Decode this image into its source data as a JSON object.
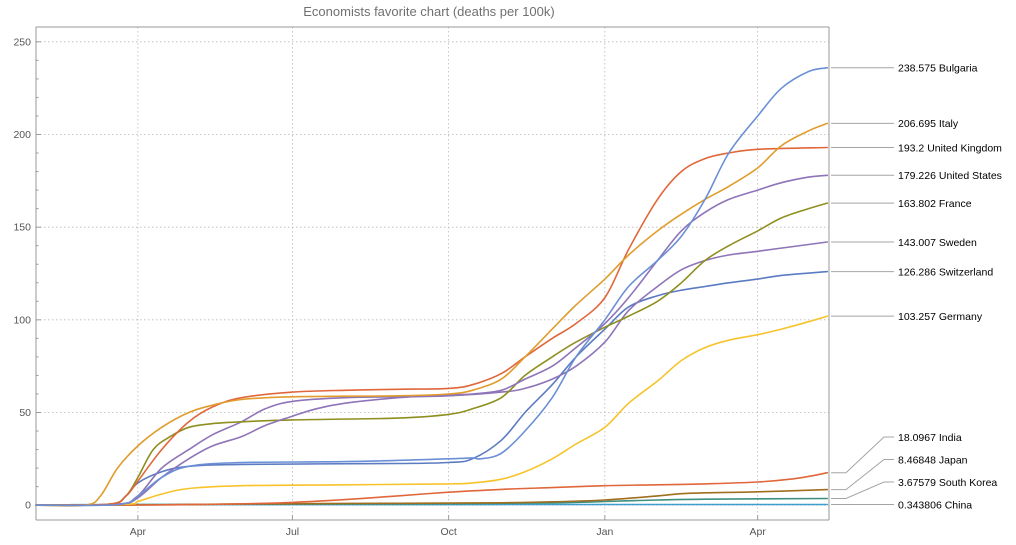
{
  "chart_data": {
    "type": "line",
    "title": "Economists favorite chart (deaths per 100k)",
    "xlabel": "",
    "ylabel": "",
    "x_domain": [
      "2020-02-01",
      "2021-05-13"
    ],
    "ylim": [
      -8,
      258
    ],
    "x_ticks": [
      {
        "date": "2020-04-01",
        "label": "Apr"
      },
      {
        "date": "2020-07-01",
        "label": "Jul"
      },
      {
        "date": "2020-10-01",
        "label": "Oct"
      },
      {
        "date": "2021-01-01",
        "label": "Jan"
      },
      {
        "date": "2021-04-01",
        "label": "Apr"
      }
    ],
    "y_ticks": [
      0,
      50,
      100,
      150,
      200,
      250
    ],
    "grid": true,
    "series": [
      {
        "name": "Bulgaria",
        "final_value": "238.575",
        "color": "#6b8fd6",
        "points": [
          [
            "2020-02-01",
            0
          ],
          [
            "2020-03-20",
            0.3
          ],
          [
            "2020-04-01",
            5
          ],
          [
            "2020-04-15",
            15
          ],
          [
            "2020-05-01",
            21
          ],
          [
            "2020-06-01",
            23
          ],
          [
            "2020-08-01",
            23.5
          ],
          [
            "2020-10-01",
            25
          ],
          [
            "2020-10-15",
            25.5
          ],
          [
            "2020-10-20",
            25
          ],
          [
            "2020-11-01",
            28
          ],
          [
            "2020-11-15",
            40
          ],
          [
            "2020-12-01",
            58
          ],
          [
            "2020-12-15",
            80
          ],
          [
            "2021-01-01",
            100
          ],
          [
            "2021-01-15",
            118
          ],
          [
            "2021-02-01",
            132
          ],
          [
            "2021-02-15",
            145
          ],
          [
            "2021-03-01",
            165
          ],
          [
            "2021-03-15",
            190
          ],
          [
            "2021-04-01",
            210
          ],
          [
            "2021-04-15",
            225
          ],
          [
            "2021-05-01",
            234
          ],
          [
            "2021-05-12",
            236
          ]
        ]
      },
      {
        "name": "Italy",
        "final_value": "206.695",
        "color": "#e09c2c",
        "points": [
          [
            "2020-02-01",
            0
          ],
          [
            "2020-03-01",
            0
          ],
          [
            "2020-03-10",
            5
          ],
          [
            "2020-03-20",
            20
          ],
          [
            "2020-04-01",
            32
          ],
          [
            "2020-04-15",
            42
          ],
          [
            "2020-05-01",
            50
          ],
          [
            "2020-05-15",
            54
          ],
          [
            "2020-06-01",
            57
          ],
          [
            "2020-07-01",
            58.5
          ],
          [
            "2020-09-01",
            59
          ],
          [
            "2020-10-01",
            60
          ],
          [
            "2020-10-15",
            62
          ],
          [
            "2020-11-01",
            68
          ],
          [
            "2020-11-15",
            80
          ],
          [
            "2020-12-01",
            95
          ],
          [
            "2020-12-15",
            108
          ],
          [
            "2021-01-01",
            122
          ],
          [
            "2021-01-15",
            135
          ],
          [
            "2021-02-01",
            148
          ],
          [
            "2021-02-15",
            157
          ],
          [
            "2021-03-01",
            165
          ],
          [
            "2021-03-15",
            172
          ],
          [
            "2021-04-01",
            182
          ],
          [
            "2021-04-15",
            194
          ],
          [
            "2021-05-01",
            202
          ],
          [
            "2021-05-12",
            206
          ]
        ]
      },
      {
        "name": "United Kingdom",
        "final_value": "193.2",
        "color": "#e0673a",
        "points": [
          [
            "2020-02-01",
            0
          ],
          [
            "2020-03-15",
            0.5
          ],
          [
            "2020-03-25",
            5
          ],
          [
            "2020-04-01",
            13
          ],
          [
            "2020-04-15",
            30
          ],
          [
            "2020-05-01",
            45
          ],
          [
            "2020-05-15",
            53
          ],
          [
            "2020-06-01",
            58
          ],
          [
            "2020-07-01",
            61
          ],
          [
            "2020-08-01",
            62
          ],
          [
            "2020-09-01",
            62.5
          ],
          [
            "2020-10-01",
            63
          ],
          [
            "2020-10-15",
            65
          ],
          [
            "2020-11-01",
            71
          ],
          [
            "2020-11-15",
            80
          ],
          [
            "2020-12-01",
            90
          ],
          [
            "2020-12-15",
            98
          ],
          [
            "2021-01-01",
            112
          ],
          [
            "2021-01-15",
            138
          ],
          [
            "2021-02-01",
            165
          ],
          [
            "2021-02-15",
            180
          ],
          [
            "2021-03-01",
            187
          ],
          [
            "2021-03-15",
            190
          ],
          [
            "2021-04-01",
            192
          ],
          [
            "2021-05-12",
            193
          ]
        ]
      },
      {
        "name": "United States",
        "final_value": "179.226",
        "color": "#8e74b8",
        "points": [
          [
            "2020-02-01",
            0
          ],
          [
            "2020-03-20",
            0.5
          ],
          [
            "2020-04-01",
            4
          ],
          [
            "2020-04-15",
            15
          ],
          [
            "2020-05-01",
            25
          ],
          [
            "2020-05-15",
            32
          ],
          [
            "2020-06-01",
            37
          ],
          [
            "2020-06-15",
            43
          ],
          [
            "2020-07-01",
            48
          ],
          [
            "2020-07-15",
            52
          ],
          [
            "2020-08-01",
            55
          ],
          [
            "2020-09-01",
            58
          ],
          [
            "2020-10-01",
            59.5
          ],
          [
            "2020-10-15",
            60
          ],
          [
            "2020-11-01",
            62
          ],
          [
            "2020-11-15",
            68
          ],
          [
            "2020-12-01",
            75
          ],
          [
            "2020-12-15",
            85
          ],
          [
            "2021-01-01",
            98
          ],
          [
            "2021-01-15",
            112
          ],
          [
            "2021-02-01",
            132
          ],
          [
            "2021-02-15",
            148
          ],
          [
            "2021-03-01",
            158
          ],
          [
            "2021-03-15",
            165
          ],
          [
            "2021-04-01",
            170
          ],
          [
            "2021-04-15",
            174
          ],
          [
            "2021-05-01",
            177
          ],
          [
            "2021-05-12",
            178
          ]
        ]
      },
      {
        "name": "France",
        "final_value": "163.802",
        "color": "#8f8f1f",
        "points": [
          [
            "2020-02-01",
            0
          ],
          [
            "2020-03-15",
            0.5
          ],
          [
            "2020-03-25",
            5
          ],
          [
            "2020-04-01",
            15
          ],
          [
            "2020-04-10",
            30
          ],
          [
            "2020-04-20",
            37
          ],
          [
            "2020-05-01",
            42
          ],
          [
            "2020-05-15",
            44
          ],
          [
            "2020-06-01",
            45
          ],
          [
            "2020-07-01",
            46
          ],
          [
            "2020-09-01",
            47
          ],
          [
            "2020-10-01",
            49
          ],
          [
            "2020-10-15",
            52
          ],
          [
            "2020-11-01",
            58
          ],
          [
            "2020-11-15",
            70
          ],
          [
            "2020-12-01",
            80
          ],
          [
            "2020-12-15",
            88
          ],
          [
            "2021-01-01",
            96
          ],
          [
            "2021-01-15",
            102
          ],
          [
            "2021-02-01",
            110
          ],
          [
            "2021-02-15",
            120
          ],
          [
            "2021-03-01",
            132
          ],
          [
            "2021-03-15",
            140
          ],
          [
            "2021-04-01",
            148
          ],
          [
            "2021-04-15",
            155
          ],
          [
            "2021-05-01",
            160
          ],
          [
            "2021-05-12",
            163
          ]
        ]
      },
      {
        "name": "Sweden",
        "final_value": "143.007",
        "color": "#8e74b8",
        "points": [
          [
            "2020-02-01",
            0
          ],
          [
            "2020-03-20",
            0.5
          ],
          [
            "2020-04-01",
            5
          ],
          [
            "2020-04-15",
            20
          ],
          [
            "2020-05-01",
            30
          ],
          [
            "2020-05-15",
            38
          ],
          [
            "2020-06-01",
            45
          ],
          [
            "2020-06-15",
            52
          ],
          [
            "2020-07-01",
            56
          ],
          [
            "2020-08-01",
            58
          ],
          [
            "2020-09-01",
            58.5
          ],
          [
            "2020-10-01",
            59
          ],
          [
            "2020-11-01",
            61
          ],
          [
            "2020-11-15",
            63
          ],
          [
            "2020-12-01",
            68
          ],
          [
            "2020-12-15",
            75
          ],
          [
            "2021-01-01",
            88
          ],
          [
            "2021-01-15",
            105
          ],
          [
            "2021-02-01",
            118
          ],
          [
            "2021-02-15",
            127
          ],
          [
            "2021-03-01",
            132
          ],
          [
            "2021-03-15",
            135
          ],
          [
            "2021-04-01",
            137
          ],
          [
            "2021-05-12",
            142
          ]
        ]
      },
      {
        "name": "Switzerland",
        "final_value": "126.286",
        "color": "#5b7bc2",
        "points": [
          [
            "2020-02-01",
            0
          ],
          [
            "2020-03-15",
            0.5
          ],
          [
            "2020-03-25",
            5
          ],
          [
            "2020-04-01",
            12
          ],
          [
            "2020-04-15",
            18
          ],
          [
            "2020-05-01",
            21
          ],
          [
            "2020-06-01",
            22
          ],
          [
            "2020-09-01",
            22.5
          ],
          [
            "2020-10-01",
            23
          ],
          [
            "2020-10-15",
            25
          ],
          [
            "2020-11-01",
            35
          ],
          [
            "2020-11-15",
            50
          ],
          [
            "2020-12-01",
            65
          ],
          [
            "2020-12-15",
            80
          ],
          [
            "2021-01-01",
            95
          ],
          [
            "2021-01-15",
            107
          ],
          [
            "2021-02-01",
            113
          ],
          [
            "2021-02-15",
            116
          ],
          [
            "2021-03-01",
            118
          ],
          [
            "2021-03-15",
            120
          ],
          [
            "2021-04-01",
            122
          ],
          [
            "2021-04-15",
            124
          ],
          [
            "2021-05-12",
            126
          ]
        ]
      },
      {
        "name": "Germany",
        "final_value": "103.257",
        "color": "#f7c32b",
        "points": [
          [
            "2020-02-01",
            0
          ],
          [
            "2020-03-25",
            0.5
          ],
          [
            "2020-04-01",
            2
          ],
          [
            "2020-04-15",
            6
          ],
          [
            "2020-05-01",
            9
          ],
          [
            "2020-06-01",
            10.5
          ],
          [
            "2020-08-01",
            11
          ],
          [
            "2020-10-01",
            11.5
          ],
          [
            "2020-10-15",
            12
          ],
          [
            "2020-11-01",
            14
          ],
          [
            "2020-11-15",
            18
          ],
          [
            "2020-12-01",
            25
          ],
          [
            "2020-12-15",
            33
          ],
          [
            "2021-01-01",
            42
          ],
          [
            "2021-01-15",
            55
          ],
          [
            "2021-02-01",
            67
          ],
          [
            "2021-02-15",
            78
          ],
          [
            "2021-03-01",
            85
          ],
          [
            "2021-03-15",
            89
          ],
          [
            "2021-04-01",
            92
          ],
          [
            "2021-04-15",
            95
          ],
          [
            "2021-05-01",
            99
          ],
          [
            "2021-05-12",
            102
          ]
        ]
      },
      {
        "name": "India",
        "final_value": "18.0967",
        "color": "#e0673a",
        "points": [
          [
            "2020-02-01",
            0
          ],
          [
            "2020-04-01",
            0.1
          ],
          [
            "2020-05-01",
            0.3
          ],
          [
            "2020-06-01",
            0.7
          ],
          [
            "2020-07-01",
            1.5
          ],
          [
            "2020-08-01",
            3
          ],
          [
            "2020-09-01",
            5
          ],
          [
            "2020-10-01",
            7
          ],
          [
            "2020-11-01",
            8.5
          ],
          [
            "2020-12-01",
            9.5
          ],
          [
            "2021-01-01",
            10.5
          ],
          [
            "2021-02-01",
            11
          ],
          [
            "2021-03-01",
            11.5
          ],
          [
            "2021-04-01",
            12.5
          ],
          [
            "2021-04-20",
            14
          ],
          [
            "2021-05-01",
            15.5
          ],
          [
            "2021-05-12",
            17.5
          ]
        ]
      },
      {
        "name": "Japan",
        "final_value": "8.46848",
        "color": "#a06e1e",
        "points": [
          [
            "2020-02-01",
            0
          ],
          [
            "2020-04-01",
            0.1
          ],
          [
            "2020-06-01",
            0.7
          ],
          [
            "2020-09-01",
            1
          ],
          [
            "2020-11-01",
            1.3
          ],
          [
            "2020-12-01",
            1.8
          ],
          [
            "2021-01-01",
            2.8
          ],
          [
            "2021-02-01",
            5
          ],
          [
            "2021-02-15",
            6.2
          ],
          [
            "2021-03-01",
            6.7
          ],
          [
            "2021-04-01",
            7.2
          ],
          [
            "2021-05-12",
            8.4
          ]
        ]
      },
      {
        "name": "South Korea",
        "final_value": "3.67579",
        "color": "#3f8f7f",
        "points": [
          [
            "2020-02-01",
            0
          ],
          [
            "2020-04-01",
            0.3
          ],
          [
            "2020-06-01",
            0.5
          ],
          [
            "2020-09-01",
            0.7
          ],
          [
            "2020-12-01",
            1.2
          ],
          [
            "2021-01-01",
            2
          ],
          [
            "2021-02-01",
            2.8
          ],
          [
            "2021-03-01",
            3.2
          ],
          [
            "2021-05-12",
            3.6
          ]
        ]
      },
      {
        "name": "China",
        "final_value": "0.343806",
        "color": "#3e9fcf",
        "points": [
          [
            "2020-02-01",
            0
          ],
          [
            "2020-03-01",
            0.2
          ],
          [
            "2020-04-01",
            0.33
          ],
          [
            "2021-05-12",
            0.34
          ]
        ]
      }
    ]
  }
}
